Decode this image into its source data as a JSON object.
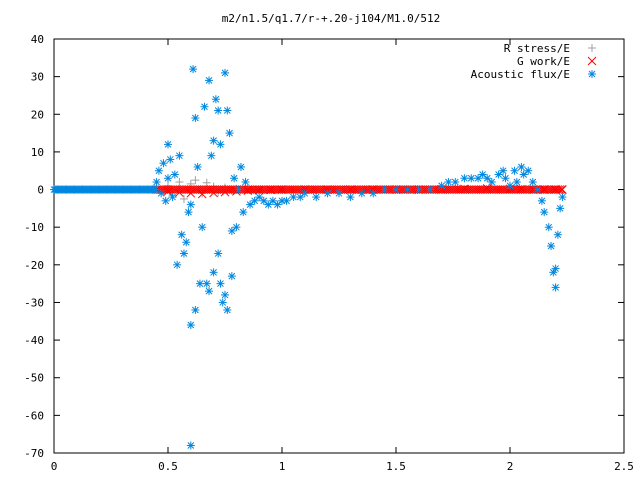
{
  "chart_data": {
    "type": "scatter",
    "title": "m2/n1.5/q1.7/r-+.20-j104/M1.0/512",
    "xlabel": "",
    "ylabel": "",
    "xlim": [
      0,
      2.5
    ],
    "ylim": [
      -70,
      40
    ],
    "x_ticks": [
      "0",
      "0.5",
      "1",
      "1.5",
      "2",
      "2.5"
    ],
    "y_ticks": [
      "40",
      "30",
      "20",
      "10",
      "0",
      "-10",
      "-20",
      "-30",
      "-40",
      "-50",
      "-60",
      "-70"
    ],
    "legend_position": "top-right",
    "grid": false,
    "series": [
      {
        "name": "R stress/E",
        "marker": "plus",
        "color": "#a0a0a0",
        "points": [
          [
            0.45,
            0.5
          ],
          [
            0.48,
            -0.5
          ],
          [
            0.5,
            1.0
          ],
          [
            0.52,
            -1.5
          ],
          [
            0.55,
            2.0
          ],
          [
            0.57,
            -2.5
          ],
          [
            0.6,
            1.5
          ],
          [
            0.62,
            2.5
          ],
          [
            0.65,
            -1.0
          ],
          [
            0.67,
            1.8
          ],
          [
            0.7,
            0.8
          ],
          [
            0.72,
            -0.8
          ],
          [
            0.75,
            0.5
          ],
          [
            0.78,
            -0.3
          ],
          [
            0.8,
            0.2
          ],
          [
            0.85,
            0.1
          ],
          [
            0.9,
            0.0
          ],
          [
            1.0,
            0.0
          ],
          [
            1.2,
            0.0
          ],
          [
            1.5,
            0.0
          ],
          [
            1.8,
            0.0
          ],
          [
            2.0,
            0.0
          ],
          [
            2.2,
            0.0
          ]
        ]
      },
      {
        "name": "G work/E",
        "marker": "cross",
        "color": "#ff0000",
        "points": [
          [
            0.5,
            -0.5
          ],
          [
            0.55,
            -0.8
          ],
          [
            0.6,
            -1.0
          ],
          [
            0.65,
            -1.2
          ],
          [
            0.7,
            -0.9
          ],
          [
            0.75,
            -0.7
          ],
          [
            0.8,
            -0.5
          ],
          [
            0.85,
            -0.3
          ],
          [
            0.9,
            -0.2
          ],
          [
            0.95,
            -0.1
          ],
          [
            1.0,
            0.0
          ],
          [
            1.1,
            0.0
          ],
          [
            1.2,
            0.0
          ],
          [
            1.3,
            0.0
          ],
          [
            1.4,
            0.0
          ],
          [
            1.5,
            0.0
          ],
          [
            1.6,
            0.0
          ],
          [
            1.7,
            0.1
          ],
          [
            1.8,
            0.2
          ],
          [
            1.9,
            0.3
          ],
          [
            2.0,
            0.2
          ],
          [
            2.05,
            0.1
          ],
          [
            2.1,
            0.0
          ],
          [
            2.15,
            0.0
          ],
          [
            2.2,
            0.0
          ],
          [
            2.23,
            0.0
          ]
        ]
      },
      {
        "name": "Acoustic flux/E",
        "marker": "star",
        "color": "#0088e0",
        "points": [
          [
            0.45,
            2
          ],
          [
            0.46,
            5
          ],
          [
            0.47,
            -1
          ],
          [
            0.48,
            7
          ],
          [
            0.49,
            -3
          ],
          [
            0.5,
            12
          ],
          [
            0.5,
            3
          ],
          [
            0.51,
            8
          ],
          [
            0.52,
            -2
          ],
          [
            0.53,
            4
          ],
          [
            0.54,
            -20
          ],
          [
            0.55,
            9
          ],
          [
            0.56,
            -12
          ],
          [
            0.57,
            -17
          ],
          [
            0.58,
            -14
          ],
          [
            0.59,
            -6
          ],
          [
            0.6,
            -36
          ],
          [
            0.6,
            -4
          ],
          [
            0.61,
            32
          ],
          [
            0.62,
            -32
          ],
          [
            0.62,
            19
          ],
          [
            0.63,
            6
          ],
          [
            0.64,
            -25
          ],
          [
            0.65,
            -10
          ],
          [
            0.66,
            22
          ],
          [
            0.67,
            -25
          ],
          [
            0.68,
            29
          ],
          [
            0.68,
            -27
          ],
          [
            0.69,
            9
          ],
          [
            0.7,
            13
          ],
          [
            0.7,
            -22
          ],
          [
            0.71,
            24
          ],
          [
            0.72,
            -17
          ],
          [
            0.72,
            21
          ],
          [
            0.73,
            -25
          ],
          [
            0.73,
            12
          ],
          [
            0.74,
            -30
          ],
          [
            0.75,
            31
          ],
          [
            0.75,
            -28
          ],
          [
            0.76,
            -32
          ],
          [
            0.76,
            21
          ],
          [
            0.77,
            15
          ],
          [
            0.78,
            -23
          ],
          [
            0.78,
            -11
          ],
          [
            0.79,
            3
          ],
          [
            0.8,
            -10
          ],
          [
            0.81,
            0
          ],
          [
            0.6,
            -68
          ],
          [
            0.82,
            6
          ],
          [
            0.83,
            -6
          ],
          [
            0.84,
            2
          ],
          [
            0.86,
            -4
          ],
          [
            0.88,
            -3
          ],
          [
            0.9,
            -2
          ],
          [
            0.92,
            -3
          ],
          [
            0.94,
            -4
          ],
          [
            0.96,
            -3
          ],
          [
            0.98,
            -4
          ],
          [
            1.0,
            -3
          ],
          [
            1.02,
            -3
          ],
          [
            1.05,
            -2
          ],
          [
            1.08,
            -2
          ],
          [
            1.1,
            -1
          ],
          [
            1.15,
            -2
          ],
          [
            1.2,
            -1
          ],
          [
            1.25,
            -1
          ],
          [
            1.3,
            -2
          ],
          [
            1.35,
            -1
          ],
          [
            1.4,
            -1
          ],
          [
            1.45,
            0
          ],
          [
            1.5,
            0
          ],
          [
            1.55,
            0
          ],
          [
            1.6,
            0
          ],
          [
            1.65,
            0
          ],
          [
            1.7,
            1
          ],
          [
            1.73,
            2
          ],
          [
            1.76,
            2
          ],
          [
            1.8,
            3
          ],
          [
            1.83,
            3
          ],
          [
            1.86,
            3
          ],
          [
            1.88,
            4
          ],
          [
            1.9,
            3
          ],
          [
            1.92,
            2
          ],
          [
            1.95,
            4
          ],
          [
            1.97,
            5
          ],
          [
            1.98,
            3
          ],
          [
            2.0,
            1
          ],
          [
            2.02,
            5
          ],
          [
            2.03,
            2
          ],
          [
            2.05,
            6
          ],
          [
            2.06,
            4
          ],
          [
            2.08,
            5
          ],
          [
            2.1,
            2
          ],
          [
            2.12,
            0
          ],
          [
            2.14,
            -3
          ],
          [
            2.15,
            -6
          ],
          [
            2.17,
            -10
          ],
          [
            2.18,
            -15
          ],
          [
            2.19,
            -22
          ],
          [
            2.2,
            -26
          ],
          [
            2.2,
            -21
          ],
          [
            2.21,
            -12
          ],
          [
            2.22,
            -5
          ],
          [
            2.23,
            -2
          ]
        ],
        "dense_band": {
          "x_start": 0.0,
          "x_end": 0.45,
          "y": 0
        }
      }
    ]
  }
}
